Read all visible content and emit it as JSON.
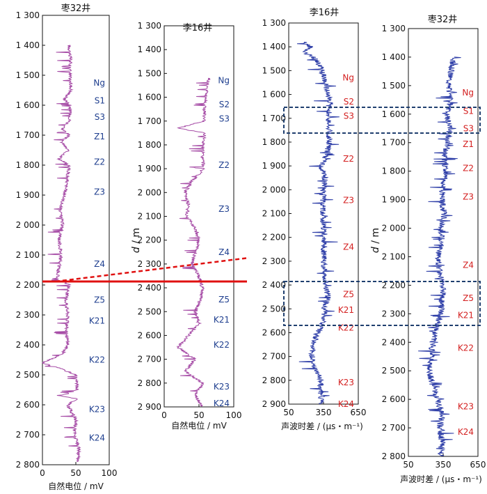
{
  "figure": {
    "y_axis_label": "d",
    "y_axis_unit": "m"
  },
  "chart_data": [
    {
      "id": "p1",
      "type": "line",
      "title": "枣32井",
      "xlabel": "自然电位 / mV",
      "xlim": [
        0,
        100
      ],
      "xticks": [
        "0",
        "50",
        "100"
      ],
      "ylim": [
        1300,
        2800
      ],
      "yticks": [
        "1 300",
        "1 400",
        "1 500",
        "1 600",
        "1 700",
        "1 800",
        "1 900",
        "2 000",
        "2 100",
        "2 200",
        "2 300",
        "2 400",
        "2 500",
        "2 600",
        "2 700",
        "2 800"
      ],
      "curve_color": "#a64ca6",
      "zone_color": "#1f3f8f",
      "zones": [
        {
          "label": "Ng",
          "depth": 1525
        },
        {
          "label": "S1",
          "depth": 1585
        },
        {
          "label": "S3",
          "depth": 1640
        },
        {
          "label": "Z1",
          "depth": 1705
        },
        {
          "label": "Z2",
          "depth": 1790
        },
        {
          "label": "Z3",
          "depth": 1890
        },
        {
          "label": "Z4",
          "depth": 2130
        },
        {
          "label": "Z5",
          "depth": 2250
        },
        {
          "label": "K21",
          "depth": 2320
        },
        {
          "label": "K22",
          "depth": 2450
        },
        {
          "label": "K23",
          "depth": 2615
        },
        {
          "label": "K24",
          "depth": 2710
        }
      ],
      "curve": {
        "depth": [
          1400,
          1450,
          1500,
          1550,
          1580,
          1600,
          1650,
          1680,
          1700,
          1720,
          1750,
          1780,
          1800,
          1850,
          1900,
          1950,
          2000,
          2050,
          2100,
          2150,
          2180,
          2200,
          2250,
          2300,
          2350,
          2400,
          2430,
          2460,
          2480,
          2500,
          2550,
          2570,
          2580,
          2600,
          2650,
          2700,
          2750,
          2790
        ],
        "value": [
          40,
          42,
          41,
          43,
          33,
          42,
          41,
          30,
          40,
          28,
          38,
          25,
          40,
          37,
          33,
          26,
          30,
          25,
          28,
          24,
          22,
          40,
          35,
          38,
          36,
          38,
          30,
          0,
          28,
          50,
          52,
          28,
          52,
          38,
          50,
          48,
          55,
          52
        ]
      }
    },
    {
      "id": "p2",
      "type": "line",
      "title": "李16井",
      "xlabel": "自然电位 / mV",
      "xlim": [
        0,
        100
      ],
      "xticks": [
        "0",
        "50",
        "100"
      ],
      "ylim": [
        1300,
        2900
      ],
      "yticks": [
        "1 300",
        "1 400",
        "1 500",
        "1 600",
        "1 700",
        "1 800",
        "1 900",
        "2 000",
        "2 100",
        "2 200",
        "2 300",
        "2 400",
        "2 500",
        "2 600",
        "2 700",
        "2 800",
        "2 900"
      ],
      "curve_color": "#a64ca6",
      "zone_color": "#1f3f8f",
      "zones": [
        {
          "label": "Ng",
          "depth": 1530
        },
        {
          "label": "S2",
          "depth": 1630
        },
        {
          "label": "S3",
          "depth": 1690
        },
        {
          "label": "Z2",
          "depth": 1885
        },
        {
          "label": "Z3",
          "depth": 2070
        },
        {
          "label": "Z4",
          "depth": 2250
        },
        {
          "label": "Z5",
          "depth": 2450
        },
        {
          "label": "K21",
          "depth": 2535
        },
        {
          "label": "K22",
          "depth": 2640
        },
        {
          "label": "K23",
          "depth": 2815
        },
        {
          "label": "K24",
          "depth": 2885
        }
      ],
      "curve": {
        "depth": [
          1520,
          1540,
          1560,
          1600,
          1650,
          1700,
          1730,
          1750,
          1800,
          1850,
          1900,
          1950,
          2000,
          2050,
          2100,
          2150,
          2200,
          2250,
          2300,
          2350,
          2400,
          2450,
          2500,
          2550,
          2600,
          2650,
          2700,
          2750,
          2800,
          2850,
          2900
        ],
        "value": [
          65,
          62,
          62,
          60,
          58,
          57,
          20,
          58,
          56,
          55,
          57,
          40,
          30,
          35,
          32,
          45,
          50,
          45,
          40,
          50,
          55,
          52,
          45,
          50,
          35,
          20,
          45,
          30,
          55,
          45,
          55
        ]
      }
    },
    {
      "id": "p3",
      "type": "line",
      "title": "李16井",
      "xlabel": "声波时差 / (μs・m⁻¹)",
      "xlim": [
        50,
        650
      ],
      "xticks": [
        "50",
        "350",
        "650"
      ],
      "ylim": [
        1300,
        2900
      ],
      "yticks": [
        "1 300",
        "1 400",
        "1 500",
        "1 600",
        "1 700",
        "1 800",
        "1 900",
        "2 000",
        "2 100",
        "2 200",
        "2 300",
        "2 400",
        "2 500",
        "2 600",
        "2 700",
        "2 800",
        "2 900"
      ],
      "curve_color": "#2f3fa8",
      "zone_color": "#d42020",
      "zones": [
        {
          "label": "Ng",
          "depth": 1530
        },
        {
          "label": "S2",
          "depth": 1630
        },
        {
          "label": "S3",
          "depth": 1690
        },
        {
          "label": "Z2",
          "depth": 1870
        },
        {
          "label": "Z3",
          "depth": 2045
        },
        {
          "label": "Z4",
          "depth": 2240
        },
        {
          "label": "Z5",
          "depth": 2440
        },
        {
          "label": "K21",
          "depth": 2505
        },
        {
          "label": "K22",
          "depth": 2580
        },
        {
          "label": "K23",
          "depth": 2810
        },
        {
          "label": "K24",
          "depth": 2900
        }
      ],
      "curve": {
        "depth": [
          1380,
          1400,
          1420,
          1450,
          1500,
          1550,
          1600,
          1650,
          1700,
          1750,
          1800,
          1850,
          1900,
          1950,
          2000,
          2100,
          2200,
          2300,
          2400,
          2450,
          2500,
          2550,
          2600,
          2650,
          2700,
          2750,
          2800,
          2850,
          2900
        ],
        "value": [
          190,
          240,
          180,
          280,
          340,
          360,
          390,
          410,
          390,
          400,
          400,
          380,
          330,
          360,
          350,
          340,
          360,
          350,
          370,
          390,
          360,
          350,
          300,
          260,
          250,
          270,
          330,
          320,
          330
        ]
      }
    },
    {
      "id": "p4",
      "type": "line",
      "title": "枣32井",
      "xlabel": "声波时差 / (μs・m⁻¹)",
      "xlim": [
        50,
        650
      ],
      "xticks": [
        "50",
        "350",
        "650"
      ],
      "ylim": [
        1300,
        2800
      ],
      "yticks": [
        "1 300",
        "1 400",
        "1 500",
        "1 600",
        "1 700",
        "1 800",
        "1 900",
        "2 000",
        "2 100",
        "2 200",
        "2 300",
        "2 400",
        "2 500",
        "2 600",
        "2 700",
        "2 800"
      ],
      "curve_color": "#2f3fa8",
      "zone_color": "#d42020",
      "zones": [
        {
          "label": "Ng",
          "depth": 1525
        },
        {
          "label": "S1",
          "depth": 1590
        },
        {
          "label": "S3",
          "depth": 1650
        },
        {
          "label": "Z1",
          "depth": 1705
        },
        {
          "label": "Z2",
          "depth": 1790
        },
        {
          "label": "Z3",
          "depth": 1890
        },
        {
          "label": "Z4",
          "depth": 2130
        },
        {
          "label": "Z5",
          "depth": 2245
        },
        {
          "label": "K21",
          "depth": 2305
        },
        {
          "label": "K22",
          "depth": 2420
        },
        {
          "label": "K23",
          "depth": 2625
        },
        {
          "label": "K24",
          "depth": 2715
        }
      ],
      "curve": {
        "depth": [
          1400,
          1450,
          1500,
          1550,
          1600,
          1650,
          1700,
          1750,
          1800,
          1850,
          1900,
          1950,
          2000,
          2050,
          2100,
          2150,
          2200,
          2250,
          2300,
          2350,
          2400,
          2450,
          2500,
          2550,
          2600,
          2650,
          2700,
          2750,
          2800
        ],
        "value": [
          440,
          420,
          400,
          420,
          380,
          410,
          390,
          360,
          370,
          350,
          340,
          360,
          330,
          340,
          300,
          320,
          350,
          340,
          330,
          290,
          260,
          250,
          230,
          260,
          300,
          340,
          320,
          340,
          330
        ]
      }
    }
  ]
}
